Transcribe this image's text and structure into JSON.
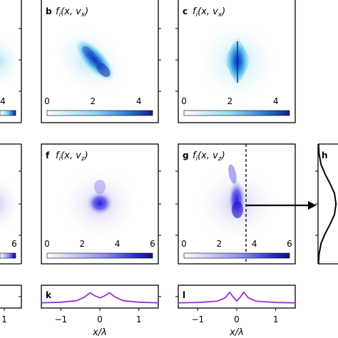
{
  "chart_data": [
    {
      "type": "heatmap",
      "panel": "b",
      "title": "f_i(x, v_x)",
      "xticks": [
        "0",
        "2",
        "4"
      ],
      "xlim": [
        0,
        4.6
      ],
      "colormap": "white-cyan-blue",
      "feature": "elongated diagonal blob, tilted from upper-left to lower-right, centered near x = 2.2"
    },
    {
      "type": "heatmap",
      "panel": "c",
      "title": "f_i(x, v_x)",
      "xticks": [
        "0",
        "2",
        "4"
      ],
      "xlim": [
        0,
        4.6
      ],
      "colormap": "white-cyan-blue",
      "feature": "diamond-shaped blob with vertical streak, centered near x = 2.2"
    },
    {
      "type": "heatmap",
      "panel": "f",
      "title": "f_i(x, v_z)",
      "xticks": [
        "0",
        "2",
        "4",
        "6"
      ],
      "xlim": [
        0,
        6
      ],
      "colormap": "white-blue",
      "feature": "compact blob centered near x = 3"
    },
    {
      "type": "heatmap",
      "panel": "g",
      "title": "f_i(x, v_z)",
      "xticks": [
        "0",
        "2",
        "4",
        "6"
      ],
      "xlim": [
        0,
        6
      ],
      "colormap": "white-blue",
      "feature": "vertically elongated blob with upward tail centered near x = 3; dashed vertical cut near x = 3.7 with arrow to panel h"
    },
    {
      "type": "line",
      "panel": "h",
      "feature": "profile along the dashed cut in panel g, single peak near the middle",
      "x": [
        0.02,
        0.05,
        0.15,
        0.35,
        0.6,
        0.82,
        0.9,
        0.82,
        0.6,
        0.35,
        0.15,
        0.05,
        0.02
      ],
      "y": [
        0.0,
        0.08,
        0.17,
        0.25,
        0.33,
        0.41,
        0.5,
        0.59,
        0.67,
        0.75,
        0.83,
        0.92,
        1.0
      ]
    },
    {
      "type": "line",
      "panel": "k",
      "color": "#9b30d0",
      "xticks": [
        "−1",
        "0",
        "1"
      ],
      "xlim": [
        -1.5,
        1.5
      ],
      "xlabel": "x/λ",
      "x": [
        -1.5,
        -1.0,
        -0.6,
        -0.4,
        -0.25,
        -0.12,
        0.0,
        0.12,
        0.25,
        0.4,
        0.6,
        1.0,
        1.5
      ],
      "y": [
        0.05,
        0.1,
        0.22,
        0.5,
        0.85,
        0.6,
        0.45,
        0.6,
        0.85,
        0.5,
        0.22,
        0.1,
        0.05
      ]
    },
    {
      "type": "line",
      "panel": "l",
      "color": "#9b30d0",
      "xticks": [
        "−1",
        "0",
        "1"
      ],
      "xlim": [
        -1.5,
        1.5
      ],
      "xlabel": "x/λ",
      "x": [
        -1.5,
        -1.0,
        -0.5,
        -0.3,
        -0.18,
        -0.1,
        0.0,
        0.1,
        0.18,
        0.3,
        0.5,
        1.0,
        1.5
      ],
      "y": [
        0.05,
        0.08,
        0.18,
        0.45,
        0.9,
        0.55,
        0.2,
        0.55,
        0.9,
        0.45,
        0.18,
        0.08,
        0.05
      ]
    }
  ],
  "labels": {
    "b": "b",
    "c": "c",
    "f": "f",
    "g": "g",
    "h": "h",
    "k": "k",
    "l": "l",
    "title_b": "f_i(x, v_x)",
    "title_c": "f_i(x, v_x)",
    "title_f": "f_i(x, v_z)",
    "title_g": "f_i(x, v_z)",
    "xlabel_k": "x/λ",
    "xlabel_l": "x/λ",
    "left_top_tick": "4",
    "left_mid_tick": "6",
    "left_bottom_tick": "1"
  },
  "colors": {
    "cyan": "#00b4e6",
    "blue_dark": "#1a2a9a",
    "blue": "#2a3ce0",
    "purple": "#9b30d0",
    "frame": "#000000"
  }
}
